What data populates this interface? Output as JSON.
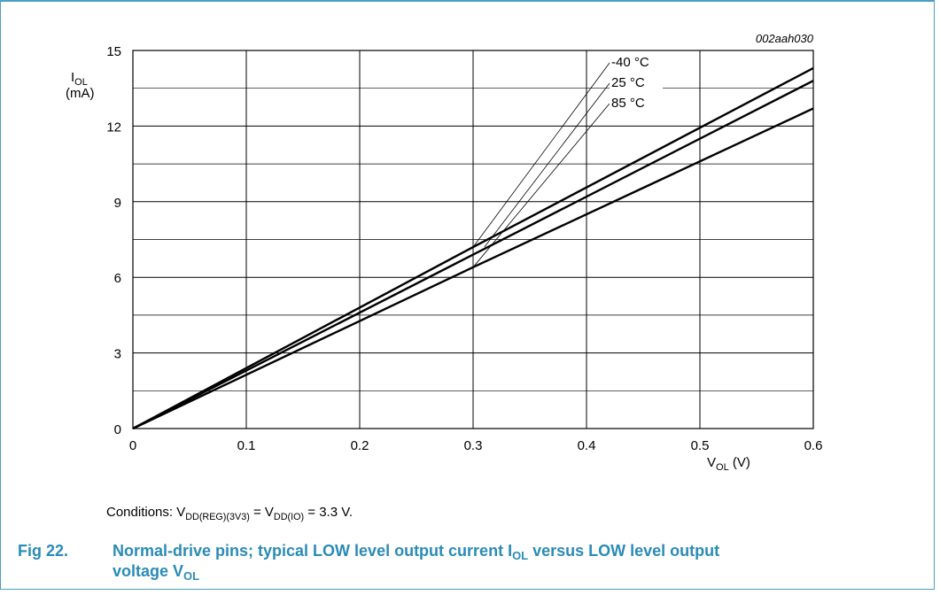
{
  "figure_code": "002aah030",
  "conditions": {
    "prefix": "Conditions: V",
    "sub1": "DD(REG)(3V3)",
    "mid": " = V",
    "sub2": "DD(IO)",
    "suffix": " = 3.3 V."
  },
  "caption": {
    "number": "Fig 22.",
    "text_a": "Normal-drive pins; typical LOW level output current I",
    "sub_a": "OL",
    "text_b": " versus LOW level output",
    "text_c": "voltage V",
    "sub_c": "OL"
  },
  "colors": {
    "frame": "#4b9fc0",
    "caption": "#2a8bb6",
    "lines": "#000000"
  },
  "chart_data": {
    "type": "line",
    "title": "",
    "xlabel": "V_OL (V)",
    "ylabel": "I_OL (mA)",
    "xlabel_parts": {
      "main": "V",
      "sub": "OL",
      "unit": " (V)"
    },
    "ylabel_parts": {
      "main": "I",
      "sub": "OL",
      "unit": "(mA)"
    },
    "xlim": [
      0,
      0.6
    ],
    "ylim": [
      0,
      15
    ],
    "x_ticks": [
      0,
      0.1,
      0.2,
      0.3,
      0.4,
      0.5,
      0.6
    ],
    "x_tick_labels": [
      "0",
      "0.1",
      "0.2",
      "0.3",
      "0.4",
      "0.5",
      "0.6"
    ],
    "y_ticks": [
      0,
      3,
      6,
      9,
      12,
      15
    ],
    "y_tick_labels": [
      "0",
      "3",
      "6",
      "9",
      "12",
      "15"
    ],
    "grid": true,
    "series": [
      {
        "name": "-40 °C",
        "x": [
          0,
          0.3,
          0.6
        ],
        "y": [
          0,
          7.2,
          14.3
        ]
      },
      {
        "name": "25 °C",
        "x": [
          0,
          0.3,
          0.6
        ],
        "y": [
          0,
          6.9,
          13.8
        ]
      },
      {
        "name": "85 °C",
        "x": [
          0,
          0.3,
          0.6
        ],
        "y": [
          0,
          6.4,
          12.7
        ]
      }
    ],
    "annotation_targets": [
      {
        "series": "-40 °C",
        "x": 0.3,
        "y": 7.2
      },
      {
        "series": "25 °C",
        "x": 0.31,
        "y": 7.2
      },
      {
        "series": "85 °C",
        "x": 0.3,
        "y": 6.4
      }
    ]
  }
}
